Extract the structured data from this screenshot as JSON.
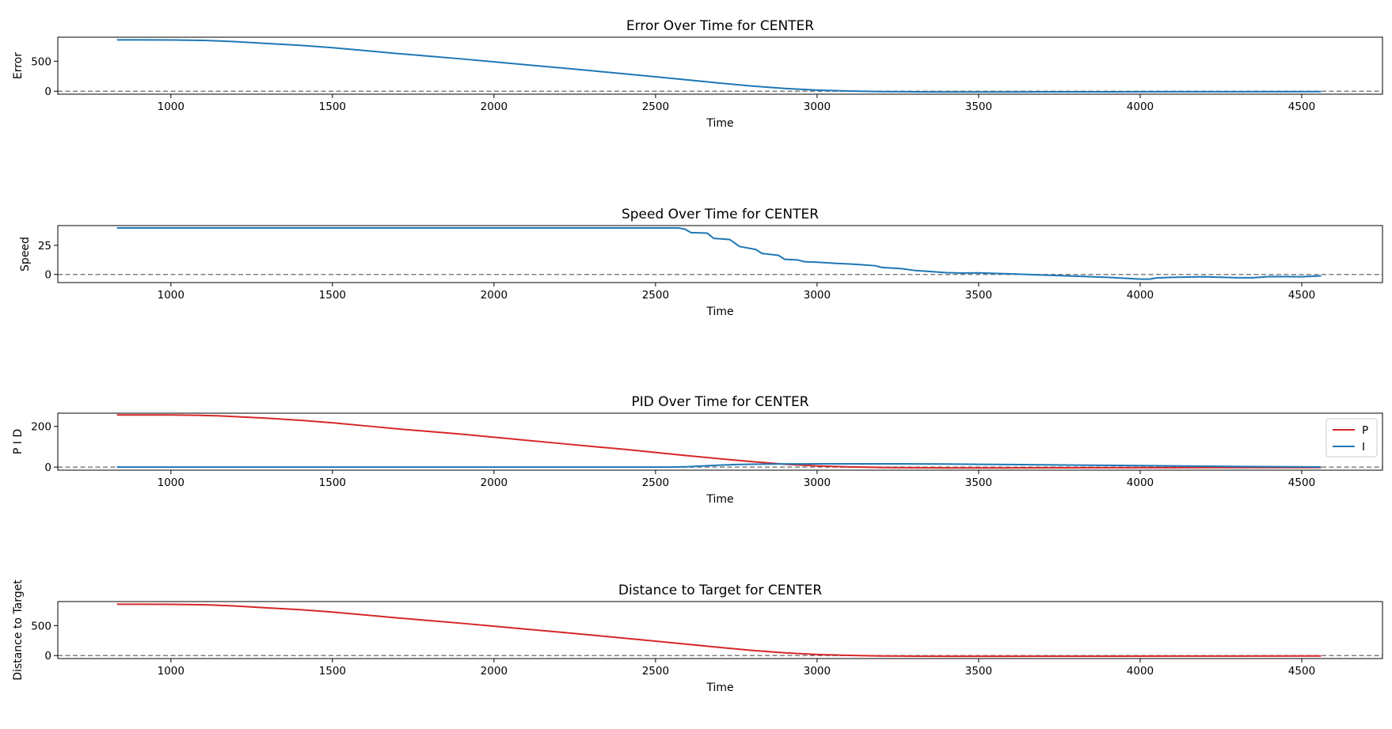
{
  "chart_data": [
    {
      "type": "line",
      "title": "Error Over Time for CENTER",
      "xlabel": "Time",
      "ylabel": "Error",
      "xlim": [
        650,
        4750
      ],
      "ylim": [
        -50,
        900
      ],
      "xticks": [
        1000,
        1500,
        2000,
        2500,
        3000,
        3500,
        4000,
        4500
      ],
      "yticks": [
        0,
        500
      ],
      "grid": false,
      "reference_line": {
        "y": 0,
        "style": "dashed",
        "color": "#808080"
      },
      "series": [
        {
          "color": "#1f77b4",
          "x": [
            833,
            900,
            1000,
            1100,
            1150,
            1200,
            1300,
            1400,
            1500,
            1600,
            1700,
            1800,
            1900,
            2000,
            2100,
            2200,
            2300,
            2400,
            2500,
            2600,
            2700,
            2800,
            2900,
            3000,
            3100,
            3200,
            3300,
            3400,
            3500,
            3700,
            3900,
            4100,
            4300,
            4560
          ],
          "values": [
            855,
            855,
            853,
            847,
            838,
            825,
            795,
            765,
            725,
            678,
            628,
            583,
            538,
            490,
            440,
            392,
            342,
            292,
            240,
            188,
            135,
            85,
            45,
            18,
            2,
            -7,
            -10,
            -12,
            -12,
            -11,
            -10,
            -9,
            -8,
            -7
          ]
        }
      ]
    },
    {
      "type": "line",
      "title": "Speed Over Time for CENTER",
      "xlabel": "Time",
      "ylabel": "Speed",
      "xlim": [
        650,
        4750
      ],
      "ylim": [
        -7,
        42
      ],
      "xticks": [
        1000,
        1500,
        2000,
        2500,
        3000,
        3500,
        4000,
        4500
      ],
      "yticks": [
        0,
        25
      ],
      "grid": false,
      "reference_line": {
        "y": 0,
        "style": "dashed",
        "color": "#808080"
      },
      "series": [
        {
          "color": "#1f77b4",
          "x": [
            833,
            2570,
            2590,
            2610,
            2660,
            2680,
            2730,
            2760,
            2810,
            2830,
            2880,
            2900,
            2940,
            2960,
            3000,
            3030,
            3060,
            3100,
            3130,
            3180,
            3200,
            3260,
            3300,
            3350,
            3400,
            3450,
            3500,
            3600,
            3700,
            3800,
            3900,
            4000,
            4030,
            4050,
            4100,
            4200,
            4300,
            4350,
            4400,
            4500,
            4560
          ],
          "values": [
            40,
            40,
            39,
            36,
            35.5,
            31,
            30,
            24,
            21.5,
            18,
            16.5,
            13,
            12.5,
            11,
            10.5,
            10,
            9.5,
            9,
            8.5,
            7.5,
            6,
            5,
            3.5,
            2.5,
            1.5,
            1.2,
            1.3,
            0.5,
            -0.5,
            -1.5,
            -2.5,
            -4,
            -4,
            -3,
            -2.5,
            -2,
            -2.8,
            -2.8,
            -1.8,
            -2,
            -1.2
          ]
        }
      ]
    },
    {
      "type": "line",
      "title": "PID Over Time for CENTER",
      "xlabel": "Time",
      "ylabel": "P I D",
      "xlim": [
        650,
        4750
      ],
      "ylim": [
        -15,
        265
      ],
      "xticks": [
        1000,
        1500,
        2000,
        2500,
        3000,
        3500,
        4000,
        4500
      ],
      "yticks": [
        0,
        200
      ],
      "grid": false,
      "legend": "top-right",
      "reference_line": {
        "y": 0,
        "style": "dashed",
        "color": "#808080"
      },
      "series": [
        {
          "name": "P",
          "color": "#d62728",
          "x": [
            833,
            900,
            1000,
            1100,
            1150,
            1200,
            1300,
            1400,
            1500,
            1600,
            1700,
            1800,
            1900,
            2000,
            2100,
            2200,
            2300,
            2400,
            2500,
            2600,
            2700,
            2800,
            2900,
            3000,
            3100,
            3200,
            3300,
            3400,
            3500,
            3700,
            3900,
            4100,
            4300,
            4560
          ],
          "values": [
            256,
            256,
            256,
            254,
            252,
            248,
            240,
            230,
            218,
            203,
            188,
            175,
            162,
            147,
            132,
            117,
            102,
            88,
            72,
            56,
            41,
            27,
            14,
            6,
            1,
            -2,
            -3,
            -4,
            -4,
            -3.5,
            -3,
            -2.7,
            -2.4,
            -2.1
          ]
        },
        {
          "name": "I",
          "color": "#1f77b4",
          "x": [
            833,
            2550,
            2600,
            2650,
            2700,
            2750,
            2800,
            2900,
            3000,
            3100,
            3200,
            3300,
            3400,
            3500,
            3600,
            3700,
            3800,
            3900,
            4000,
            4100,
            4200,
            4300,
            4400,
            4560
          ],
          "values": [
            0,
            0,
            2,
            6,
            10,
            12.5,
            14,
            15.5,
            16,
            16.2,
            16.2,
            15.8,
            14.9,
            13.8,
            12.6,
            11.3,
            10,
            8.6,
            7.2,
            5.8,
            4.4,
            3,
            1.8,
            0.8
          ]
        }
      ]
    },
    {
      "type": "line",
      "title": "Distance to Target for CENTER",
      "xlabel": "Time",
      "ylabel": "Distance to Target",
      "xlim": [
        650,
        4750
      ],
      "ylim": [
        -50,
        900
      ],
      "xticks": [
        1000,
        1500,
        2000,
        2500,
        3000,
        3500,
        4000,
        4500
      ],
      "yticks": [
        0,
        500
      ],
      "grid": false,
      "reference_line": {
        "y": 0,
        "style": "dashed",
        "color": "#808080"
      },
      "series": [
        {
          "color": "#d62728",
          "x": [
            833,
            900,
            1000,
            1100,
            1150,
            1200,
            1300,
            1400,
            1500,
            1600,
            1700,
            1800,
            1900,
            2000,
            2100,
            2200,
            2300,
            2400,
            2500,
            2600,
            2700,
            2800,
            2900,
            3000,
            3100,
            3200,
            3300,
            3400,
            3500,
            3700,
            3900,
            4100,
            4300,
            4560
          ],
          "values": [
            855,
            855,
            853,
            847,
            838,
            825,
            795,
            765,
            725,
            678,
            628,
            583,
            538,
            490,
            440,
            392,
            342,
            292,
            240,
            188,
            135,
            85,
            45,
            18,
            2,
            -7,
            -10,
            -12,
            -12,
            -11,
            -10,
            -9,
            -8,
            -7
          ]
        }
      ]
    }
  ]
}
